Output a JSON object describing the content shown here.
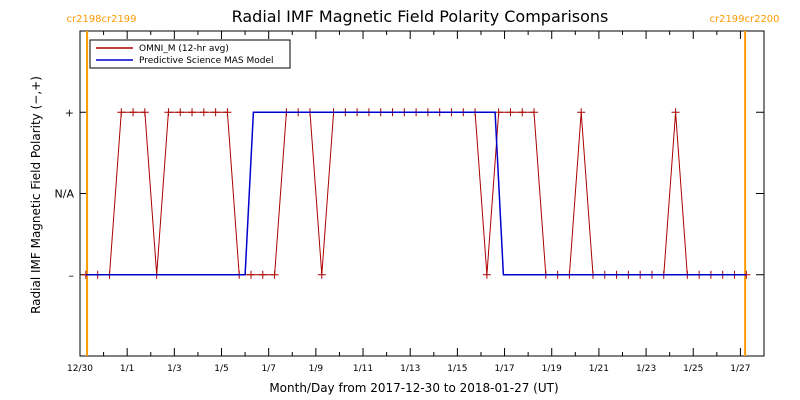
{
  "chart_data": {
    "type": "line",
    "title": "Radial IMF Magnetic Field Polarity Comparisons",
    "xlabel": "Month/Day from 2017-12-30 to 2018-01-27 (UT)",
    "ylabel": "Radial IMF Magnetic Field Polarity (−,+)",
    "xlim": [
      0,
      29
    ],
    "ylim": [
      -2,
      2
    ],
    "x_units": "days since 2017-12-30 00:00 UT",
    "xticks": [
      {
        "x": 0,
        "label": "12/30"
      },
      {
        "x": 2,
        "label": "1/1"
      },
      {
        "x": 4,
        "label": "1/3"
      },
      {
        "x": 6,
        "label": "1/5"
      },
      {
        "x": 8,
        "label": "1/7"
      },
      {
        "x": 10,
        "label": "1/9"
      },
      {
        "x": 12,
        "label": "1/11"
      },
      {
        "x": 14,
        "label": "1/13"
      },
      {
        "x": 16,
        "label": "1/15"
      },
      {
        "x": 18,
        "label": "1/17"
      },
      {
        "x": 20,
        "label": "1/19"
      },
      {
        "x": 22,
        "label": "1/21"
      },
      {
        "x": 24,
        "label": "1/23"
      },
      {
        "x": 26,
        "label": "1/25"
      },
      {
        "x": 28,
        "label": "1/27"
      }
    ],
    "yticks": [
      {
        "y": 1,
        "label": "+"
      },
      {
        "y": 0,
        "label": "N/A"
      },
      {
        "y": -1,
        "label": "–"
      }
    ],
    "carrington_markers": [
      {
        "x": 0.3,
        "label_left": "cr2198",
        "label_right": "cr2199",
        "color": "#ff9900"
      },
      {
        "x": 28.2,
        "label_left": "cr2199",
        "label_right": "cr2200",
        "color": "#ff9900"
      }
    ],
    "series": [
      {
        "name": "OMNI_M (12-hr avg)",
        "color": "#aa0000",
        "marker": "plus",
        "x": [
          0.25,
          0.75,
          1.25,
          1.75,
          2.25,
          2.75,
          3.25,
          3.75,
          4.25,
          4.75,
          5.25,
          5.75,
          6.25,
          6.75,
          7.25,
          7.75,
          8.25,
          8.75,
          9.25,
          9.75,
          10.25,
          10.75,
          11.25,
          11.75,
          12.25,
          12.75,
          13.25,
          13.75,
          14.25,
          14.75,
          15.25,
          15.75,
          16.25,
          16.75,
          17.25,
          17.75,
          18.25,
          18.75,
          19.25,
          19.75,
          20.25,
          20.75,
          21.25,
          21.75,
          22.25,
          22.75,
          23.25,
          23.75,
          24.25,
          24.75,
          25.25,
          25.75,
          26.25,
          26.75,
          27.25,
          27.75,
          28.25
        ],
        "y": [
          -1,
          -1,
          -1,
          1,
          1,
          1,
          -1,
          1,
          1,
          1,
          1,
          1,
          1,
          -1,
          -1,
          -1,
          -1,
          1,
          1,
          1,
          -1,
          1,
          1,
          1,
          1,
          1,
          1,
          1,
          1,
          1,
          1,
          1,
          1,
          1,
          -1,
          1,
          1,
          1,
          1,
          -1,
          -1,
          -1,
          1,
          -1,
          -1,
          -1,
          -1,
          -1,
          -1,
          -1,
          1,
          -1,
          -1,
          -1,
          -1,
          -1,
          -1
        ]
      },
      {
        "name": "Predictive Science MAS Model",
        "color": "#0000cc",
        "marker": "none",
        "x": [
          0.25,
          7.0,
          7.35,
          17.6,
          17.95,
          28.25
        ],
        "y": [
          -1,
          -1,
          1,
          1,
          -1,
          -1
        ]
      }
    ],
    "legend": {
      "position": "top-left"
    },
    "grid": false
  }
}
